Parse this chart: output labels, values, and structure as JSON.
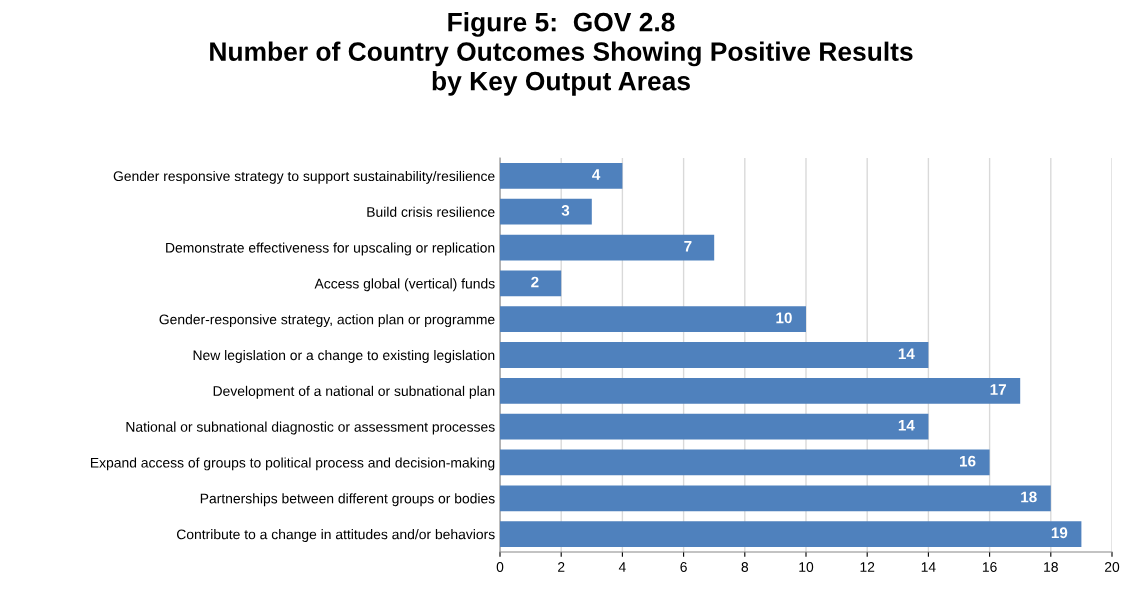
{
  "chart_data": {
    "type": "bar",
    "orientation": "horizontal",
    "title": "Figure 5:  GOV 2.8\nNumber of Country Outcomes Showing Positive Results\nby Key Output Areas",
    "categories": [
      "Gender responsive strategy to support sustainability/resilience",
      "Build crisis resilience",
      "Demonstrate effectiveness for upscaling or replication",
      "Access global (vertical) funds",
      "Gender-responsive strategy, action plan or programme",
      "New legislation or a change to existing legislation",
      "Development of a national or subnational plan",
      "National or subnational diagnostic or assessment processes",
      "Expand access of groups to political process and decision-making",
      "Partnerships between different groups or bodies",
      "Contribute to a change in attitudes and/or behaviors"
    ],
    "values": [
      4,
      3,
      7,
      2,
      10,
      14,
      17,
      14,
      16,
      18,
      19
    ],
    "color": "#4f81bd",
    "xlim": [
      0,
      20
    ],
    "xticks": [
      0,
      2,
      4,
      6,
      8,
      10,
      12,
      14,
      16,
      18,
      20
    ],
    "grid": "x",
    "data_labels": true
  }
}
